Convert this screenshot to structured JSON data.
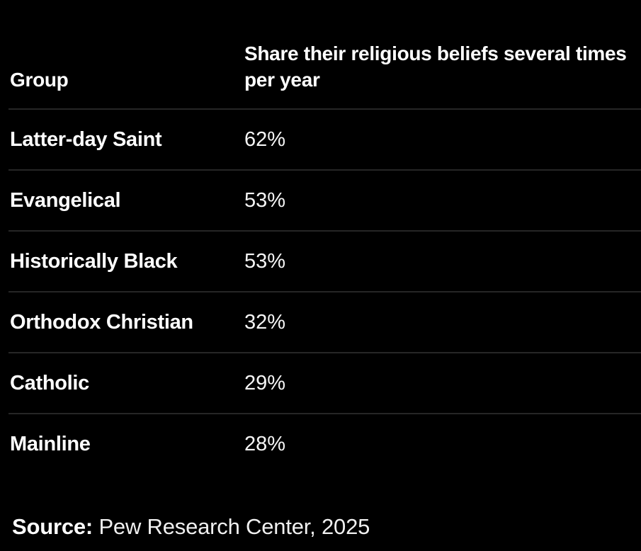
{
  "chart_data": {
    "type": "table",
    "columns": [
      "Group",
      "Share their religious beliefs several times per year"
    ],
    "rows": [
      [
        "Latter-day Saint",
        "62%"
      ],
      [
        "Evangelical",
        "53%"
      ],
      [
        "Historically Black",
        "53%"
      ],
      [
        "Orthodox Christian",
        "32%"
      ],
      [
        "Catholic",
        "29%"
      ],
      [
        "Mainline",
        "28%"
      ]
    ],
    "values_numeric": [
      62,
      53,
      53,
      32,
      29,
      28
    ],
    "title": "",
    "source": "Pew Research Center, 2025"
  },
  "footer": {
    "source_label": "Source:",
    "source_text": " Pew Research Center, 2025"
  },
  "colors": {
    "background": "#000000",
    "text": "#ffffff",
    "value_text": "#f5f5f5",
    "divider": "#262626"
  }
}
